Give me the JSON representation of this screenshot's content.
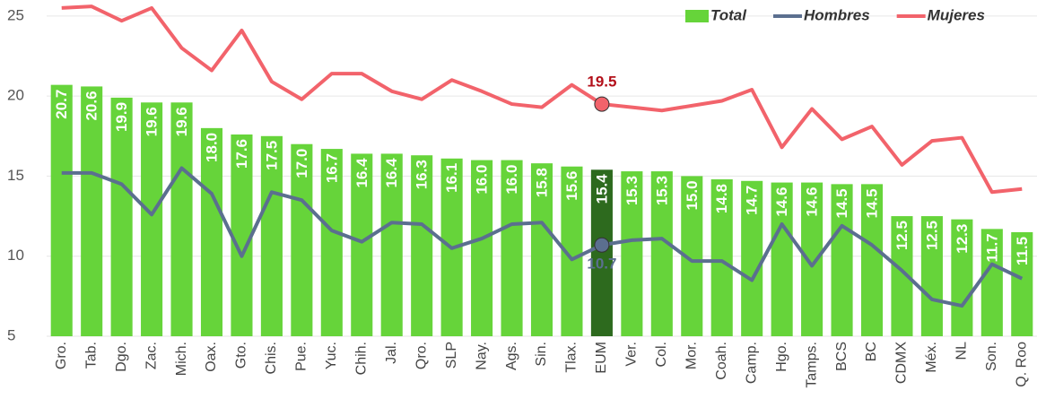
{
  "chart_data": {
    "type": "bar_line",
    "categories": [
      "Gro.",
      "Tab.",
      "Dgo.",
      "Zac.",
      "Mich.",
      "Oax.",
      "Gto.",
      "Chis.",
      "Pue.",
      "Yuc.",
      "Chih.",
      "Jal.",
      "Qro.",
      "SLP",
      "Nay.",
      "Ags.",
      "Sin.",
      "Tlax.",
      "EUM",
      "Ver.",
      "Col.",
      "Mor.",
      "Coah.",
      "Camp.",
      "Hgo.",
      "Tamps.",
      "BCS",
      "BC",
      "CDMX",
      "Méx.",
      "NL",
      "Son.",
      "Q. Roo"
    ],
    "series": [
      {
        "name": "Total",
        "kind": "bar",
        "color": "#66d43a",
        "highlight_color": "#2d6a1e",
        "highlight_index": 18,
        "values": [
          20.7,
          20.6,
          19.9,
          19.6,
          19.6,
          18.0,
          17.6,
          17.5,
          17.0,
          16.7,
          16.4,
          16.4,
          16.3,
          16.1,
          16.0,
          16.0,
          15.8,
          15.6,
          15.4,
          15.3,
          15.3,
          15.0,
          14.8,
          14.7,
          14.6,
          14.6,
          14.5,
          14.5,
          12.5,
          12.5,
          12.3,
          11.7,
          11.5
        ],
        "value_labels": [
          "20.7",
          "20.6",
          "19.9",
          "19.6",
          "19.6",
          "18.0",
          "17.6",
          "17.5",
          "17.0",
          "16.7",
          "16.4",
          "16.4",
          "16.3",
          "16.1",
          "16.0",
          "16.0",
          "15.8",
          "15.6",
          "15.4",
          "15.3",
          "15.3",
          "15.0",
          "14.8",
          "14.7",
          "14.6",
          "14.6",
          "14.5",
          "14.5",
          "12.5",
          "12.5",
          "12.3",
          "11.7",
          "11.5"
        ]
      },
      {
        "name": "Hombres",
        "kind": "line",
        "color": "#5b6f8f",
        "marker_index": 18,
        "label_color": "#5b6f8f",
        "values": [
          15.2,
          15.2,
          14.5,
          12.6,
          15.5,
          13.9,
          10.0,
          14.0,
          13.5,
          11.6,
          10.9,
          12.1,
          12.0,
          10.5,
          11.1,
          12.0,
          12.1,
          9.8,
          10.7,
          11.0,
          11.1,
          9.7,
          9.7,
          8.5,
          12.0,
          9.4,
          11.9,
          10.7,
          9.1,
          7.3,
          6.9,
          9.5,
          8.6
        ]
      },
      {
        "name": "Mujeres",
        "kind": "line",
        "color": "#f2636b",
        "marker_index": 18,
        "label_color": "#b3101a",
        "values": [
          25.5,
          25.6,
          24.7,
          25.5,
          23.0,
          21.6,
          24.1,
          20.9,
          19.8,
          21.4,
          21.4,
          20.3,
          19.8,
          21.0,
          20.3,
          19.5,
          19.3,
          20.7,
          19.5,
          19.3,
          19.1,
          19.4,
          19.7,
          20.4,
          16.8,
          19.2,
          17.3,
          18.1,
          15.7,
          17.2,
          17.4,
          14.0,
          14.2
        ]
      }
    ],
    "ylim": [
      5,
      26
    ],
    "yticks": [
      5,
      10,
      15,
      20,
      25
    ],
    "grid": true,
    "legend": "upper right"
  }
}
